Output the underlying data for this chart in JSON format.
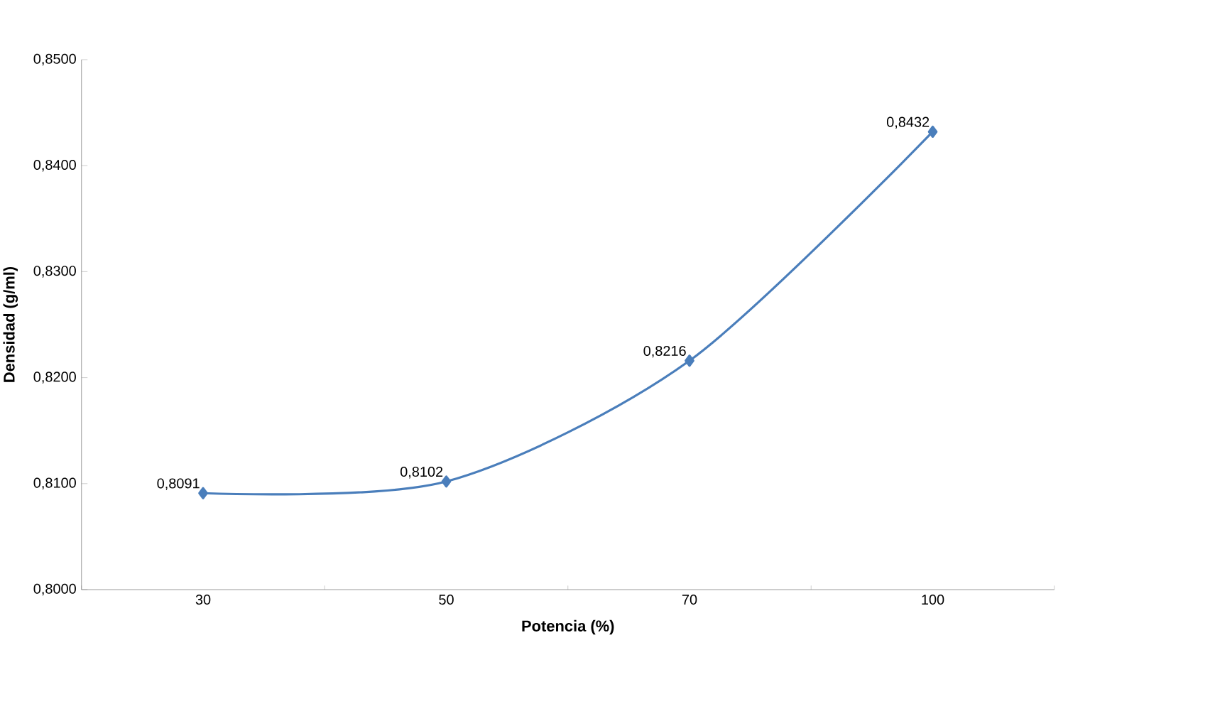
{
  "chart_data": {
    "type": "line",
    "xlabel": "Potencia (%)",
    "ylabel": "Densidad (g/ml)",
    "categories": [
      "30",
      "50",
      "70",
      "100"
    ],
    "values": [
      0.8091,
      0.8102,
      0.8216,
      0.8432
    ],
    "value_labels": [
      "0,8091",
      "0,8102",
      "0,8216",
      "0,8432"
    ],
    "color": "#4a7ebb",
    "marker": "diamond",
    "ylim": [
      0.8,
      0.85
    ],
    "yticks": [
      {
        "value": 0.8,
        "label": "0,8000"
      },
      {
        "value": 0.81,
        "label": "0,8100"
      },
      {
        "value": 0.82,
        "label": "0,8200"
      },
      {
        "value": 0.83,
        "label": "0,8300"
      },
      {
        "value": 0.84,
        "label": "0,8400"
      },
      {
        "value": 0.85,
        "label": "0,8500"
      }
    ]
  }
}
